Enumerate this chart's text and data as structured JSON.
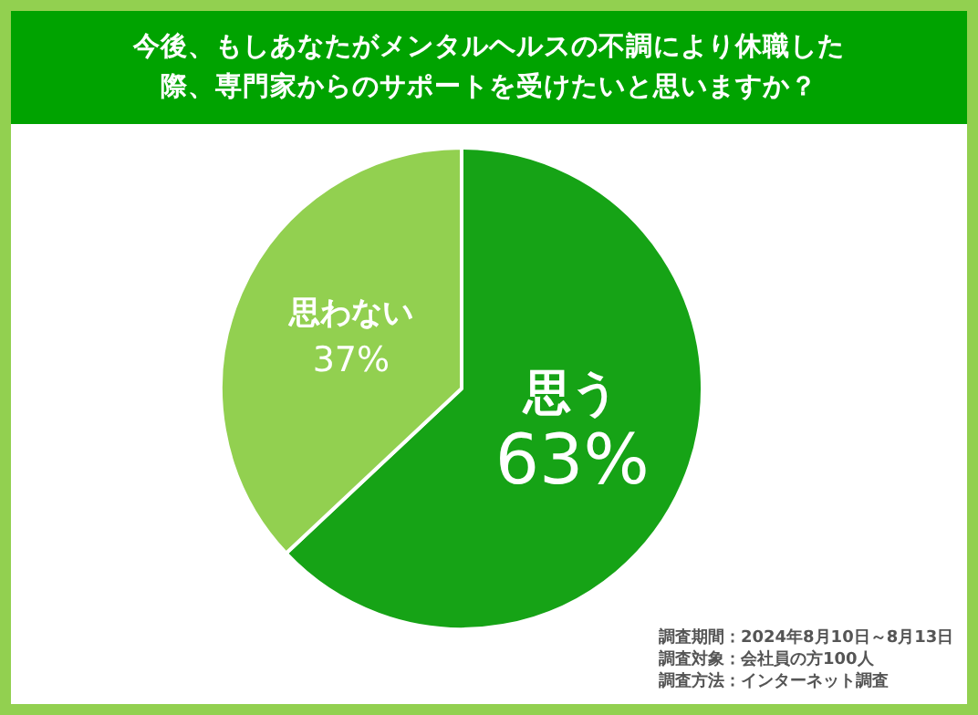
{
  "chart_data": {
    "type": "pie",
    "title": "今後、もしあなたがメンタルヘルスの不調により休職した際、専門家からのサポートを受けたいと思いますか？",
    "categories": [
      "思う",
      "思わない"
    ],
    "values": [
      63,
      37
    ],
    "colors": [
      "#16a316",
      "#92d050"
    ],
    "value_labels": [
      "63%",
      "37%"
    ],
    "legend": false,
    "annotations": [
      "調査期間：2024年8月10日～8月13日",
      "調査対象：会社員の方100人",
      "調査方法：インターネット調査"
    ]
  }
}
